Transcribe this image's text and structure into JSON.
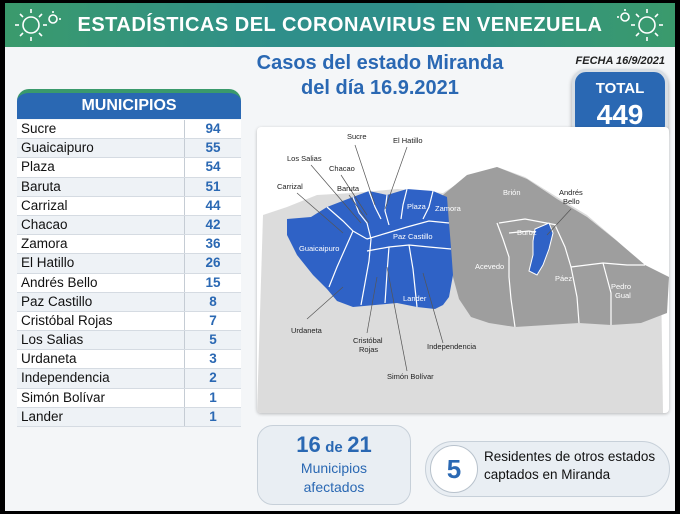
{
  "banner": {
    "title": "ESTADÍSTICAS DEL CORONAVIRUS EN VENEZUELA",
    "icon": "virus-icon"
  },
  "subtitle": {
    "line1": "Casos del estado Miranda",
    "line2": "del día 16.9.2021"
  },
  "fecha": "FECHA 16/9/2021",
  "total": {
    "label": "TOTAL",
    "value": "449"
  },
  "municipios": {
    "header": "MUNICIPIOS",
    "rows": [
      {
        "name": "Sucre",
        "value": "94"
      },
      {
        "name": "Guaicaipuro",
        "value": "55"
      },
      {
        "name": "Plaza",
        "value": "54"
      },
      {
        "name": "Baruta",
        "value": "51"
      },
      {
        "name": "Carrizal",
        "value": "44"
      },
      {
        "name": "Chacao",
        "value": "42"
      },
      {
        "name": "Zamora",
        "value": "36"
      },
      {
        "name": "El Hatillo",
        "value": "26"
      },
      {
        "name": "Andrés Bello",
        "value": "15"
      },
      {
        "name": "Paz Castillo",
        "value": "8"
      },
      {
        "name": "Cristóbal Rojas",
        "value": "7"
      },
      {
        "name": "Los Salias",
        "value": "5"
      },
      {
        "name": "Urdaneta",
        "value": "3"
      },
      {
        "name": "Independencia",
        "value": "2"
      },
      {
        "name": "Simón Bolívar",
        "value": "1"
      },
      {
        "name": "Lander",
        "value": "1"
      }
    ]
  },
  "map": {
    "colors": {
      "affected": "#2f62c6",
      "unaffected": "#9e9e9e",
      "border": "#ffffff"
    },
    "labels": {
      "sucre": "Sucre",
      "el_hatillo": "El Hatillo",
      "los_salias": "Los Salias",
      "chacao": "Chacao",
      "carrizal": "Carrizal",
      "baruta": "Baruta",
      "plaza": "Plaza",
      "zamora": "Zamora",
      "guaicaipuro": "Guaicaipuro",
      "paz_castillo": "Paz Castillo",
      "lander": "Lander",
      "urdaneta": "Urdaneta",
      "cristobal_rojas_1": "Cristóbal",
      "cristobal_rojas_2": "Rojas",
      "simon_bolivar": "Simón Bolívar",
      "independencia": "Independencia",
      "brion": "Brión",
      "andres_bello_1": "Andrés",
      "andres_bello_2": "Bello",
      "buroz": "Buroz",
      "acevedo": "Acevedo",
      "paez": "Páez",
      "pedro_gual_1": "Pedro",
      "pedro_gual_2": "Gual"
    }
  },
  "afectados": {
    "count": "16",
    "de": "de",
    "total": "21",
    "line1": "Municipios",
    "line2": "afectados"
  },
  "residentes": {
    "count": "5",
    "line1": "Residentes de otros estados",
    "line2": "captados en Miranda"
  }
}
